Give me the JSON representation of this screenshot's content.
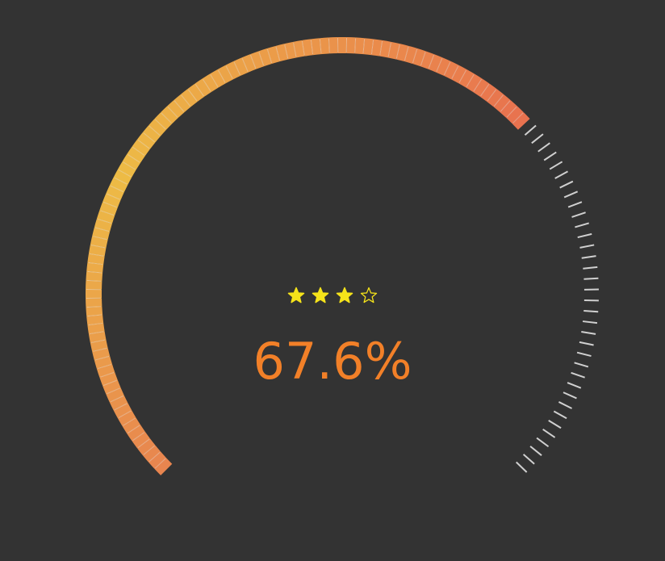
{
  "chart_data": {
    "type": "gauge",
    "value_label": "67.6%",
    "value_percent": 67.6,
    "range": [
      0,
      100
    ],
    "rating": {
      "filled": 3,
      "total": 4
    },
    "colors": {
      "background": "#333333",
      "gradient_start": "#e8844f",
      "gradient_mid": "#edbb45",
      "gradient_end": "#e8714f",
      "unfilled_tick": "#d0d0d0",
      "value_text": "#f28028",
      "star": "#f5e31a"
    }
  }
}
